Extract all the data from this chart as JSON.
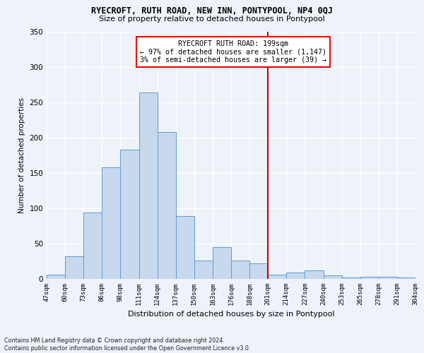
{
  "title": "RYECROFT, RUTH ROAD, NEW INN, PONTYPOOL, NP4 0QJ",
  "subtitle": "Size of property relative to detached houses in Pontypool",
  "xlabel": "Distribution of detached houses by size in Pontypool",
  "ylabel": "Number of detached properties",
  "categories": [
    "47sqm",
    "60sqm",
    "73sqm",
    "86sqm",
    "98sqm",
    "111sqm",
    "124sqm",
    "137sqm",
    "150sqm",
    "163sqm",
    "176sqm",
    "188sqm",
    "201sqm",
    "214sqm",
    "227sqm",
    "240sqm",
    "253sqm",
    "265sqm",
    "278sqm",
    "291sqm",
    "304sqm"
  ],
  "values": [
    6,
    32,
    94,
    158,
    183,
    264,
    208,
    89,
    26,
    45,
    26,
    22,
    6,
    9,
    12,
    5,
    2,
    3,
    3,
    2
  ],
  "bar_color": "#c8d9ed",
  "bar_edge_color": "#5b9bd5",
  "line_color": "#cc0000",
  "annotation_title": "RYECROFT RUTH ROAD: 199sqm",
  "annotation_line1": "← 97% of detached houses are smaller (1,147)",
  "annotation_line2": "3% of semi-detached houses are larger (39) →",
  "ylim": [
    0,
    350
  ],
  "yticks": [
    0,
    50,
    100,
    150,
    200,
    250,
    300,
    350
  ],
  "bg_color": "#eef2f9",
  "grid_color": "#ffffff",
  "footnote1": "Contains HM Land Registry data © Crown copyright and database right 2024.",
  "footnote2": "Contains public sector information licensed under the Open Government Licence v3.0."
}
